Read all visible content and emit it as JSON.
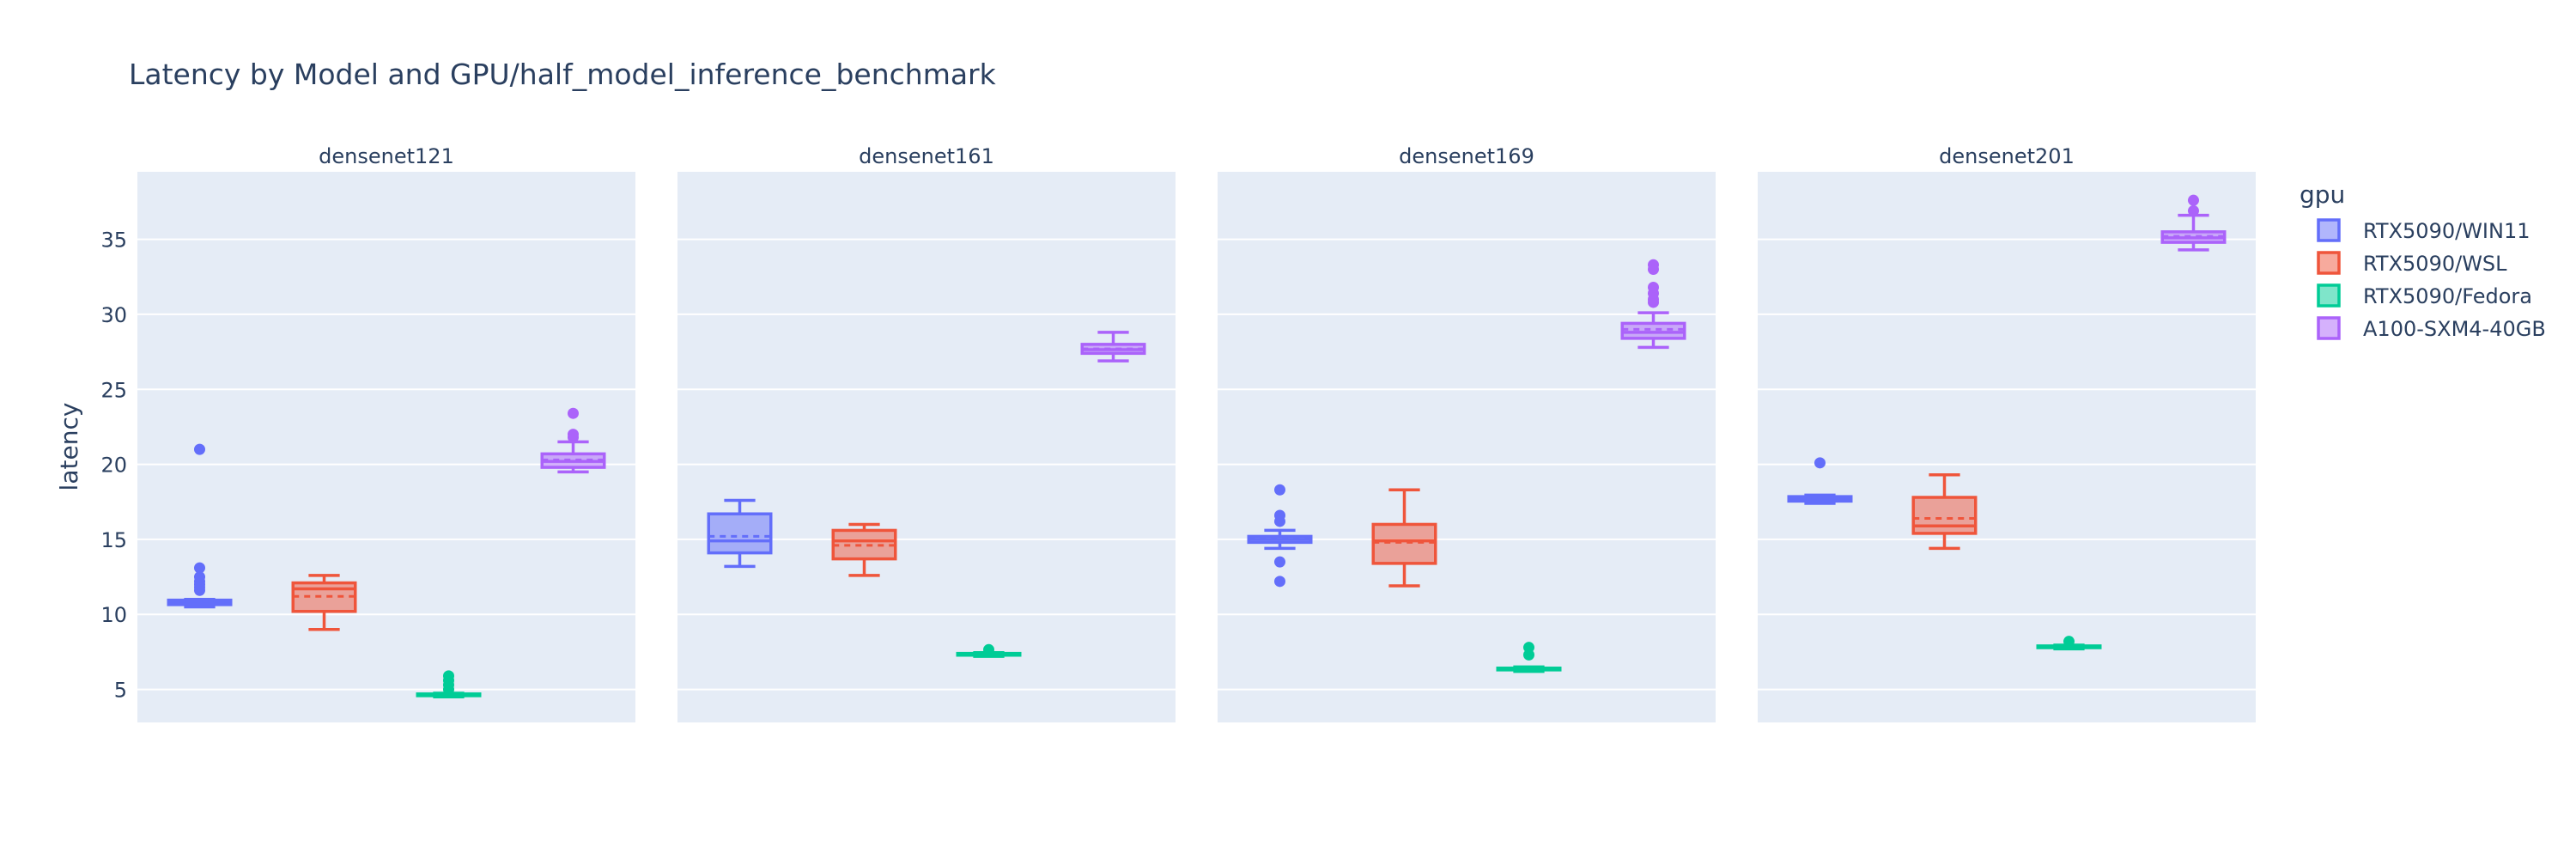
{
  "chart_data": {
    "type": "box",
    "title": "Latency by Model and GPU/half_model_inference_benchmark",
    "ylabel": "latency",
    "xlabel": "",
    "ylim": [
      2.8,
      39.5
    ],
    "yticks": [
      5,
      10,
      15,
      20,
      25,
      30,
      35
    ],
    "grid": true,
    "legend_title": "gpu",
    "legend_position": "top-right",
    "boxmean": "dashed line",
    "facets": [
      "densenet121",
      "densenet161",
      "densenet169",
      "densenet201"
    ],
    "series": [
      {
        "name": "RTX5090/WIN11",
        "color": "#636efa",
        "fill": "rgba(99,110,250,0.5)",
        "boxes": [
          {
            "facet": "densenet121",
            "lowerfence": 10.5,
            "q1": 10.65,
            "median": 10.8,
            "mean": 10.85,
            "q3": 10.95,
            "upperfence": 11.0,
            "outliers": [
              11.6,
              11.8,
              12.0,
              12.2,
              12.5,
              13.1,
              21.0
            ]
          },
          {
            "facet": "densenet161",
            "lowerfence": 13.2,
            "q1": 14.1,
            "median": 14.9,
            "mean": 15.2,
            "q3": 16.7,
            "upperfence": 17.6,
            "outliers": []
          },
          {
            "facet": "densenet169",
            "lowerfence": 14.4,
            "q1": 14.8,
            "median": 15.0,
            "mean": 15.05,
            "q3": 15.2,
            "upperfence": 15.6,
            "outliers": [
              12.2,
              13.5,
              16.2,
              16.6,
              18.3
            ]
          },
          {
            "facet": "densenet201",
            "lowerfence": 17.4,
            "q1": 17.55,
            "median": 17.7,
            "mean": 17.75,
            "q3": 17.85,
            "upperfence": 17.95,
            "outliers": [
              20.1
            ]
          }
        ]
      },
      {
        "name": "RTX5090/WSL",
        "color": "#ef553b",
        "fill": "rgba(239,85,59,0.5)",
        "boxes": [
          {
            "facet": "densenet121",
            "lowerfence": 9.0,
            "q1": 10.2,
            "median": 11.7,
            "mean": 11.2,
            "q3": 12.1,
            "upperfence": 12.6,
            "outliers": []
          },
          {
            "facet": "densenet161",
            "lowerfence": 12.6,
            "q1": 13.7,
            "median": 14.9,
            "mean": 14.6,
            "q3": 15.6,
            "upperfence": 16.0,
            "outliers": []
          },
          {
            "facet": "densenet169",
            "lowerfence": 11.9,
            "q1": 13.4,
            "median": 14.9,
            "mean": 14.8,
            "q3": 16.0,
            "upperfence": 18.3,
            "outliers": []
          },
          {
            "facet": "densenet201",
            "lowerfence": 14.4,
            "q1": 15.4,
            "median": 15.9,
            "mean": 16.4,
            "q3": 17.8,
            "upperfence": 19.3,
            "outliers": []
          }
        ]
      },
      {
        "name": "RTX5090/Fedora",
        "color": "#00cc96",
        "fill": "rgba(0,204,150,0.5)",
        "boxes": [
          {
            "facet": "densenet121",
            "lowerfence": 4.5,
            "q1": 4.58,
            "median": 4.62,
            "mean": 4.65,
            "q3": 4.7,
            "upperfence": 4.75,
            "outliers": [
              5.0,
              5.3,
              5.6,
              5.9
            ]
          },
          {
            "facet": "densenet161",
            "lowerfence": 7.2,
            "q1": 7.28,
            "median": 7.33,
            "mean": 7.35,
            "q3": 7.4,
            "upperfence": 7.45,
            "outliers": [
              7.65
            ]
          },
          {
            "facet": "densenet169",
            "lowerfence": 6.2,
            "q1": 6.3,
            "median": 6.35,
            "mean": 6.38,
            "q3": 6.42,
            "upperfence": 6.5,
            "outliers": [
              7.3,
              7.8
            ]
          },
          {
            "facet": "densenet201",
            "lowerfence": 7.7,
            "q1": 7.78,
            "median": 7.83,
            "mean": 7.85,
            "q3": 7.9,
            "upperfence": 7.95,
            "outliers": [
              8.2
            ]
          }
        ]
      },
      {
        "name": "A100-SXM4-40GB",
        "color": "#ab63fa",
        "fill": "rgba(171,99,250,0.5)",
        "boxes": [
          {
            "facet": "densenet121",
            "lowerfence": 19.5,
            "q1": 19.8,
            "median": 20.2,
            "mean": 20.3,
            "q3": 20.7,
            "upperfence": 21.5,
            "outliers": [
              21.8,
              22.0,
              23.4
            ]
          },
          {
            "facet": "densenet161",
            "lowerfence": 26.9,
            "q1": 27.4,
            "median": 27.65,
            "mean": 27.7,
            "q3": 28.0,
            "upperfence": 28.8,
            "outliers": []
          },
          {
            "facet": "densenet169",
            "lowerfence": 27.8,
            "q1": 28.4,
            "median": 28.8,
            "mean": 29.0,
            "q3": 29.4,
            "upperfence": 30.1,
            "outliers": [
              30.8,
              31.0,
              31.4,
              31.8,
              33.0,
              33.3
            ]
          },
          {
            "facet": "densenet201",
            "lowerfence": 34.3,
            "q1": 34.8,
            "median": 35.1,
            "mean": 35.2,
            "q3": 35.5,
            "upperfence": 36.6,
            "outliers": [
              36.9,
              37.6
            ]
          }
        ]
      }
    ]
  }
}
